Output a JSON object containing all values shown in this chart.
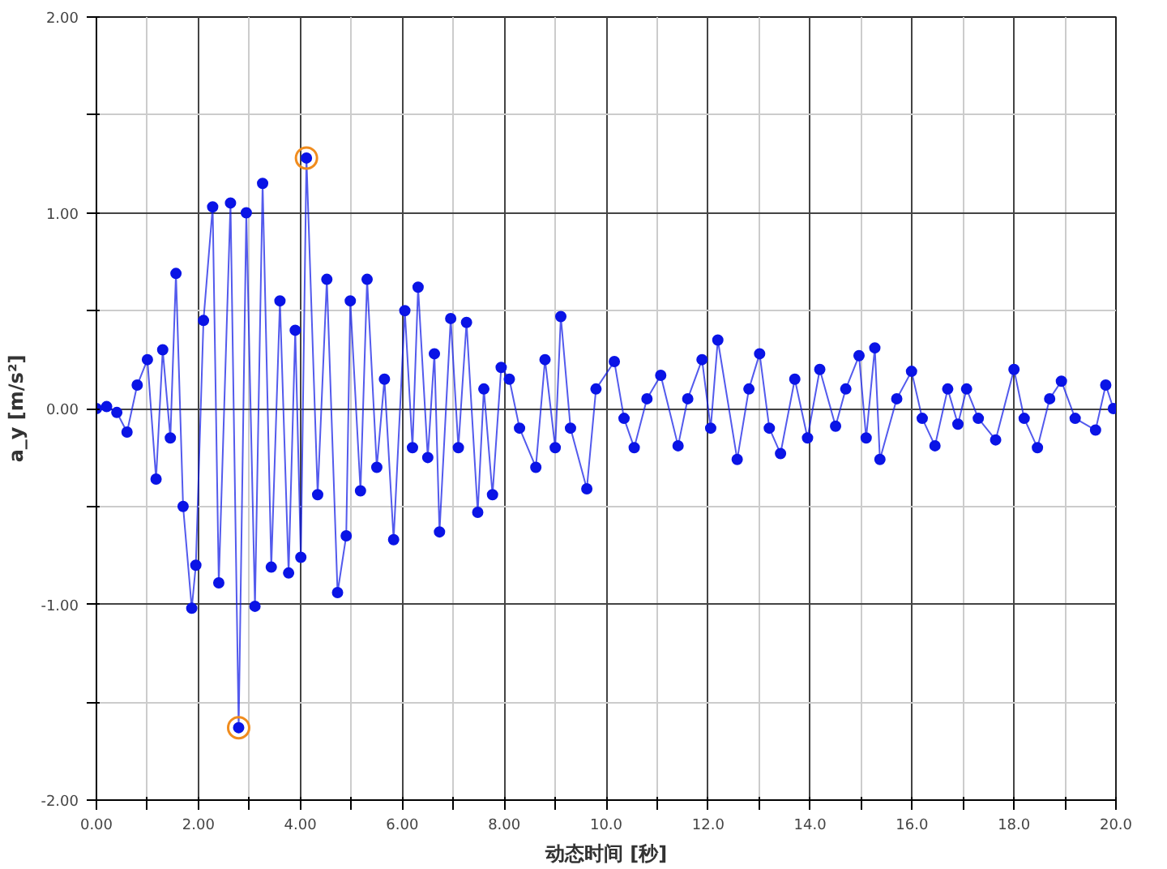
{
  "chart_data": {
    "type": "line",
    "xlabel": "动态时间 [秒]",
    "ylabel": "a_y [m/s²]",
    "xlim": [
      0,
      20
    ],
    "ylim": [
      -2,
      2
    ],
    "xticks": [
      {
        "value": 0,
        "label": "0.00"
      },
      {
        "value": 1,
        "label": null
      },
      {
        "value": 2,
        "label": "2.00"
      },
      {
        "value": 3,
        "label": null
      },
      {
        "value": 4,
        "label": "4.00"
      },
      {
        "value": 5,
        "label": null
      },
      {
        "value": 6,
        "label": "6.00"
      },
      {
        "value": 7,
        "label": null
      },
      {
        "value": 8,
        "label": "8.00"
      },
      {
        "value": 9,
        "label": null
      },
      {
        "value": 10,
        "label": "10.0"
      },
      {
        "value": 11,
        "label": null
      },
      {
        "value": 12,
        "label": "12.0"
      },
      {
        "value": 13,
        "label": null
      },
      {
        "value": 14,
        "label": "14.0"
      },
      {
        "value": 15,
        "label": null
      },
      {
        "value": 16,
        "label": "16.0"
      },
      {
        "value": 17,
        "label": null
      },
      {
        "value": 18,
        "label": "18.0"
      },
      {
        "value": 19,
        "label": null
      },
      {
        "value": 20,
        "label": "20.0"
      }
    ],
    "yticks": [
      {
        "value": -2,
        "label": "-2.00"
      },
      {
        "value": -1.5,
        "label": null
      },
      {
        "value": -1,
        "label": "-1.00"
      },
      {
        "value": -0.5,
        "label": null
      },
      {
        "value": 0,
        "label": "0.00"
      },
      {
        "value": 0.5,
        "label": null
      },
      {
        "value": 1,
        "label": "1.00"
      },
      {
        "value": 1.5,
        "label": null
      },
      {
        "value": 2,
        "label": "2.00"
      }
    ],
    "grid": true,
    "marker": "circle",
    "line_style": "solid",
    "series": [
      {
        "color": "#0a14e6",
        "x": [
          0,
          0.2,
          0.4,
          0.6,
          0.8,
          1.0,
          1.17,
          1.3,
          1.45,
          1.56,
          1.7,
          1.87,
          1.95,
          2.1,
          2.28,
          2.4,
          2.63,
          2.79,
          2.94,
          3.11,
          3.26,
          3.43,
          3.6,
          3.77,
          3.9,
          4.01,
          4.12,
          4.34,
          4.52,
          4.73,
          4.9,
          4.98,
          5.18,
          5.31,
          5.5,
          5.65,
          5.83,
          6.05,
          6.2,
          6.31,
          6.5,
          6.63,
          6.73,
          6.95,
          7.1,
          7.26,
          7.48,
          7.6,
          7.77,
          7.94,
          8.1,
          8.3,
          8.62,
          8.8,
          9.0,
          9.11,
          9.3,
          9.62,
          9.8,
          10.16,
          10.35,
          10.55,
          10.8,
          11.07,
          11.41,
          11.6,
          11.88,
          12.05,
          12.19,
          12.57,
          12.8,
          13.01,
          13.2,
          13.42,
          13.7,
          13.95,
          14.19,
          14.5,
          14.7,
          14.96,
          15.1,
          15.27,
          15.37,
          15.7,
          15.99,
          16.2,
          16.45,
          16.7,
          16.9,
          17.07,
          17.3,
          17.64,
          18.0,
          18.2,
          18.46,
          18.7,
          18.93,
          19.2,
          19.6,
          19.8,
          19.95
        ],
        "values": [
          0,
          0.01,
          -0.02,
          -0.12,
          0.12,
          0.25,
          -0.36,
          0.3,
          -0.15,
          0.69,
          -0.5,
          -1.02,
          -0.8,
          0.45,
          1.03,
          -0.89,
          1.05,
          -1.63,
          1.0,
          -1.01,
          1.15,
          -0.81,
          0.55,
          -0.84,
          0.4,
          -0.76,
          1.28,
          -0.44,
          0.66,
          -0.94,
          -0.65,
          0.55,
          -0.42,
          0.66,
          -0.3,
          0.15,
          -0.67,
          0.5,
          -0.2,
          0.62,
          -0.25,
          0.28,
          -0.63,
          0.46,
          -0.2,
          0.44,
          -0.53,
          0.1,
          -0.44,
          0.21,
          0.15,
          -0.1,
          -0.3,
          0.25,
          -0.2,
          0.47,
          -0.1,
          -0.41,
          0.1,
          0.24,
          -0.05,
          -0.2,
          0.05,
          0.17,
          -0.19,
          0.05,
          0.25,
          -0.1,
          0.35,
          -0.26,
          0.1,
          0.28,
          -0.1,
          -0.23,
          0.15,
          -0.15,
          0.2,
          -0.09,
          0.1,
          0.27,
          -0.15,
          0.31,
          -0.26,
          0.05,
          0.19,
          -0.05,
          -0.19,
          0.1,
          -0.08,
          0.1,
          -0.05,
          -0.16,
          0.2,
          -0.05,
          -0.2,
          0.05,
          0.14,
          -0.05,
          -0.11,
          0.12,
          0
        ]
      },
      {
        "type": "scatter",
        "color": "#f08c1e",
        "x": [
          2.79,
          4.12
        ],
        "values": [
          -1.63,
          1.28
        ]
      }
    ]
  }
}
